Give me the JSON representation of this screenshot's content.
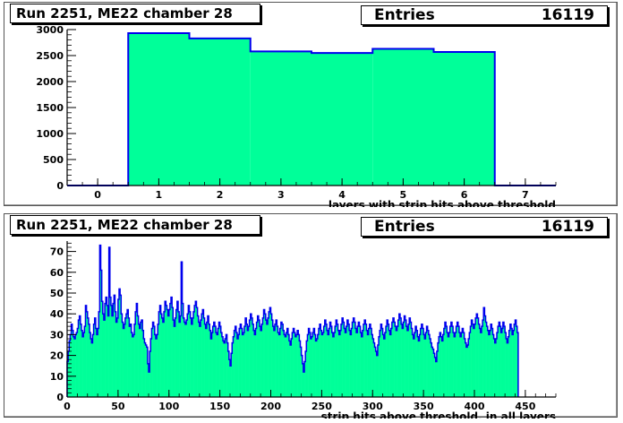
{
  "chart_data": [
    {
      "type": "bar",
      "title": "Run 2251, ME22 chamber 28",
      "stats": {
        "label": "Entries",
        "value": "16119"
      },
      "xlabel": "layers with strip hits above threshold",
      "ylabel": "",
      "xlim": [
        -0.5,
        7.5
      ],
      "ylim": [
        0,
        3000
      ],
      "xticks": [
        0,
        1,
        2,
        3,
        4,
        5,
        6,
        7
      ],
      "yticks": [
        0,
        500,
        1000,
        1500,
        2000,
        2500,
        3000
      ],
      "bins": [
        {
          "x": 0,
          "y": 0
        },
        {
          "x": 1,
          "y": 2930
        },
        {
          "x": 2,
          "y": 2830
        },
        {
          "x": 3,
          "y": 2580
        },
        {
          "x": 4,
          "y": 2550
        },
        {
          "x": 5,
          "y": 2630
        },
        {
          "x": 6,
          "y": 2570
        },
        {
          "x": 7,
          "y": 0
        }
      ],
      "fill_color": "#00ff99",
      "line_color": "#0000ee",
      "grid": false
    },
    {
      "type": "area",
      "title": "Run 2251, ME22 chamber 28",
      "stats": {
        "label": "Entries",
        "value": "16119"
      },
      "xlabel": "strip hits above threshold, in all layers",
      "ylabel": "",
      "xlim": [
        0,
        480
      ],
      "ylim": [
        0,
        75
      ],
      "xticks": [
        0,
        50,
        100,
        150,
        200,
        250,
        300,
        350,
        400,
        450
      ],
      "yticks": [
        0,
        10,
        20,
        30,
        40,
        50,
        60,
        70
      ],
      "bin_width": 1,
      "values": [
        17,
        22,
        27,
        30,
        35,
        32,
        29,
        28,
        30,
        31,
        33,
        37,
        39,
        35,
        32,
        29,
        31,
        34,
        44,
        41,
        38,
        35,
        31,
        28,
        26,
        30,
        35,
        38,
        33,
        30,
        33,
        41,
        73,
        61,
        46,
        40,
        37,
        45,
        48,
        44,
        39,
        72,
        48,
        44,
        39,
        45,
        49,
        41,
        36,
        38,
        47,
        52,
        49,
        40,
        36,
        33,
        35,
        38,
        40,
        42,
        38,
        34,
        35,
        31,
        29,
        30,
        35,
        41,
        45,
        39,
        35,
        33,
        36,
        37,
        32,
        28,
        26,
        25,
        24,
        16,
        12,
        22,
        28,
        33,
        36,
        34,
        30,
        28,
        30,
        35,
        41,
        44,
        40,
        38,
        36,
        41,
        46,
        44,
        42,
        39,
        42,
        45,
        48,
        43,
        37,
        34,
        38,
        42,
        46,
        41,
        36,
        39,
        65,
        45,
        38,
        36,
        35,
        37,
        40,
        44,
        41,
        38,
        35,
        38,
        41,
        44,
        46,
        43,
        39,
        36,
        34,
        37,
        40,
        42,
        38,
        35,
        33,
        36,
        39,
        35,
        32,
        28,
        31,
        34,
        36,
        34,
        31,
        30,
        33,
        36,
        34,
        31,
        29,
        27,
        26,
        28,
        30,
        26,
        22,
        18,
        15,
        21,
        26,
        29,
        32,
        34,
        31,
        28,
        30,
        33,
        35,
        33,
        30,
        31,
        34,
        38,
        35,
        32,
        34,
        37,
        40,
        38,
        35,
        32,
        30,
        33,
        36,
        39,
        37,
        34,
        32,
        35,
        38,
        42,
        40,
        37,
        35,
        38,
        41,
        43,
        40,
        37,
        34,
        32,
        35,
        37,
        34,
        31,
        30,
        33,
        36,
        35,
        32,
        30,
        29,
        31,
        33,
        30,
        27,
        25,
        28,
        31,
        33,
        31,
        29,
        30,
        32,
        30,
        27,
        24,
        20,
        16,
        12,
        17,
        22,
        27,
        30,
        33,
        31,
        28,
        29,
        31,
        33,
        30,
        27,
        28,
        30,
        33,
        35,
        32,
        30,
        31,
        34,
        37,
        35,
        32,
        30,
        33,
        36,
        34,
        31,
        29,
        31,
        34,
        37,
        35,
        32,
        30,
        32,
        35,
        38,
        36,
        33,
        31,
        34,
        37,
        35,
        32,
        30,
        33,
        36,
        38,
        36,
        33,
        31,
        34,
        36,
        34,
        31,
        29,
        32,
        35,
        37,
        35,
        32,
        30,
        33,
        35,
        33,
        30,
        28,
        26,
        24,
        22,
        20,
        25,
        29,
        32,
        35,
        33,
        30,
        28,
        31,
        34,
        37,
        35,
        32,
        30,
        33,
        36,
        38,
        36,
        34,
        32,
        34,
        37,
        40,
        38,
        35,
        33,
        36,
        39,
        37,
        34,
        32,
        35,
        38,
        36,
        33,
        30,
        28,
        31,
        34,
        32,
        29,
        27,
        30,
        33,
        35,
        33,
        30,
        28,
        31,
        34,
        32,
        30,
        28,
        26,
        24,
        23,
        21,
        19,
        17,
        22,
        26,
        29,
        31,
        29,
        27,
        30,
        33,
        36,
        34,
        31,
        29,
        31,
        34,
        36,
        34,
        31,
        29,
        31,
        34,
        36,
        34,
        31,
        29,
        31,
        33,
        31,
        28,
        26,
        24,
        25,
        28,
        31,
        34,
        37,
        35,
        33,
        35,
        38,
        40,
        38,
        35,
        33,
        31,
        34,
        37,
        43,
        39,
        36,
        34,
        32,
        30,
        32,
        35,
        33,
        30,
        28,
        26,
        28,
        31,
        34,
        36,
        34,
        31,
        33,
        36,
        34,
        31,
        28,
        26,
        29,
        32,
        35,
        33,
        30,
        32,
        35,
        37,
        34,
        31
      ],
      "fill_color": "#00ff99",
      "line_color": "#0000ee",
      "grid": false
    }
  ]
}
